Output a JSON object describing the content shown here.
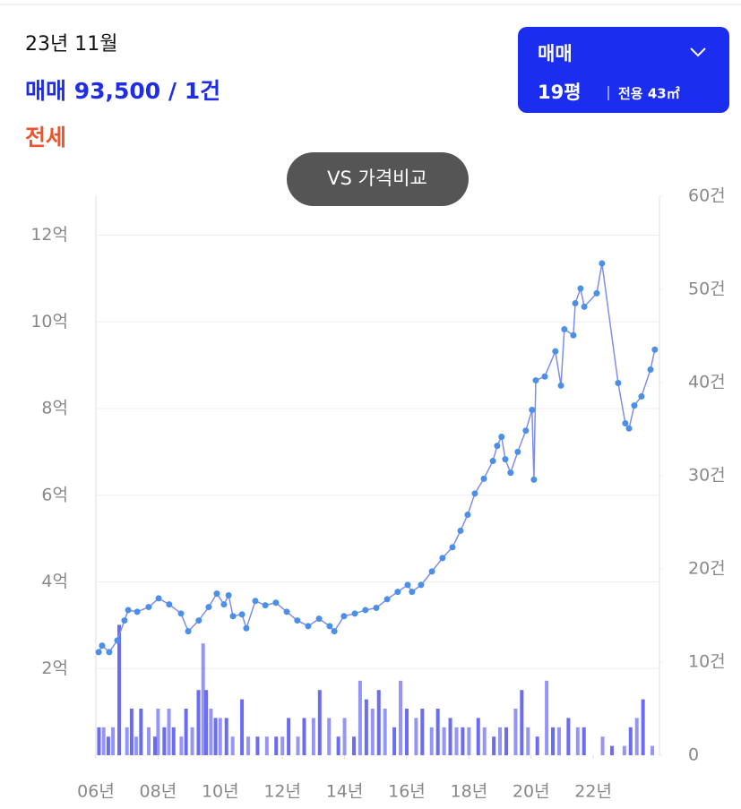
{
  "header": {
    "period": "23년 11월",
    "deal_line": "매매 93,500 / 1건",
    "jeonse": "전세"
  },
  "selector": {
    "type": "매매",
    "size": "19평",
    "area": "전용 43㎡"
  },
  "compare_button": "VS 가격비교",
  "chart_data": [
    {
      "type": "line",
      "color": "#4a90e8",
      "x": [
        2006.09,
        2006.2,
        2006.43,
        2006.69,
        2006.92,
        2007.04,
        2007.33,
        2007.7,
        2008.02,
        2008.36,
        2008.74,
        2008.97,
        2009.31,
        2009.63,
        2009.89,
        2010.12,
        2010.27,
        2010.41,
        2010.7,
        2010.84,
        2011.13,
        2011.45,
        2011.79,
        2012.14,
        2012.48,
        2012.83,
        2013.18,
        2013.52,
        2013.67,
        2013.98,
        2014.33,
        2014.67,
        2015.02,
        2015.37,
        2015.71,
        2016.03,
        2016.17,
        2016.46,
        2016.81,
        2017.15,
        2017.47,
        2017.73,
        2017.96,
        2018.19,
        2018.48,
        2018.77,
        2018.91,
        2019.05,
        2019.17,
        2019.34,
        2019.57,
        2019.83,
        2020.03,
        2020.09,
        2020.15,
        2020.44,
        2020.78,
        2020.96,
        2021.07,
        2021.36,
        2021.42,
        2021.59,
        2021.71,
        2022.11,
        2022.28,
        2022.8,
        2023.03,
        2023.15,
        2023.32,
        2023.55,
        2023.84,
        2023.98
      ],
      "values": [
        2.38,
        2.53,
        2.38,
        2.65,
        3.11,
        3.35,
        3.31,
        3.42,
        3.62,
        3.48,
        3.27,
        2.86,
        3.11,
        3.42,
        3.73,
        3.48,
        3.69,
        3.21,
        3.25,
        2.93,
        3.56,
        3.46,
        3.52,
        3.31,
        3.11,
        2.98,
        3.15,
        2.98,
        2.86,
        3.21,
        3.27,
        3.35,
        3.4,
        3.6,
        3.77,
        3.93,
        3.77,
        3.93,
        4.24,
        4.55,
        4.8,
        5.18,
        5.55,
        6.04,
        6.38,
        6.79,
        7.14,
        7.35,
        6.83,
        6.52,
        7.0,
        7.49,
        7.97,
        6.36,
        8.65,
        8.74,
        9.32,
        8.53,
        9.83,
        9.69,
        10.43,
        10.77,
        10.35,
        10.66,
        11.35,
        8.59,
        7.66,
        7.54,
        8.07,
        8.28,
        8.9,
        9.36
      ],
      "xlim": [
        2006,
        2024.1
      ],
      "xticks": [
        {
          "value": 2006,
          "label": "06년"
        },
        {
          "value": 2008,
          "label": "08년"
        },
        {
          "value": 2010,
          "label": "10년"
        },
        {
          "value": 2012,
          "label": "12년"
        },
        {
          "value": 2014,
          "label": "14년"
        },
        {
          "value": 2016,
          "label": "16년"
        },
        {
          "value": 2018,
          "label": "18년"
        },
        {
          "value": 2020,
          "label": "20년"
        },
        {
          "value": 2022,
          "label": "22년"
        }
      ],
      "ylim": [
        0,
        12.9
      ],
      "yticks": [
        {
          "value": 2,
          "label": "2억"
        },
        {
          "value": 4,
          "label": "4억"
        },
        {
          "value": 6,
          "label": "6억"
        },
        {
          "value": 8,
          "label": "8억"
        },
        {
          "value": 10,
          "label": "10억"
        },
        {
          "value": 12,
          "label": "12억"
        }
      ],
      "grid": true
    },
    {
      "type": "bar",
      "color": "#5a5cf2",
      "x": [
        2006.1,
        2006.25,
        2006.4,
        2006.55,
        2006.75,
        2007.0,
        2007.15,
        2007.3,
        2007.45,
        2007.7,
        2007.9,
        2008.0,
        2008.2,
        2008.35,
        2008.5,
        2008.75,
        2008.9,
        2009.1,
        2009.3,
        2009.45,
        2009.55,
        2009.7,
        2009.85,
        2010.0,
        2010.2,
        2010.4,
        2010.7,
        2010.9,
        2011.2,
        2011.5,
        2011.8,
        2012.0,
        2012.2,
        2012.5,
        2012.7,
        2013.0,
        2013.2,
        2013.5,
        2013.8,
        2014.0,
        2014.3,
        2014.5,
        2014.7,
        2014.9,
        2015.1,
        2015.3,
        2015.6,
        2015.8,
        2016.0,
        2016.3,
        2016.5,
        2016.8,
        2017.0,
        2017.2,
        2017.4,
        2017.6,
        2017.8,
        2018.0,
        2018.3,
        2018.5,
        2018.8,
        2019.0,
        2019.2,
        2019.5,
        2019.7,
        2019.9,
        2020.2,
        2020.5,
        2020.7,
        2020.9,
        2021.2,
        2021.5,
        2021.7,
        2022.3,
        2022.6,
        2023.0,
        2023.2,
        2023.4,
        2023.6,
        2023.9
      ],
      "values": [
        3,
        3,
        2,
        3,
        14,
        3,
        5,
        2,
        5,
        3,
        2,
        5,
        3,
        5,
        3,
        2,
        5,
        3,
        7,
        12,
        7,
        5,
        4,
        4,
        4,
        2,
        6,
        2,
        2,
        2,
        2,
        2,
        4,
        2,
        4,
        4,
        7,
        4,
        2,
        4,
        2,
        8,
        6,
        5,
        7,
        5,
        3,
        8,
        5,
        4,
        5,
        3,
        5,
        3,
        4,
        3,
        3,
        3,
        4,
        3,
        2,
        3,
        3,
        5,
        7,
        3,
        2,
        8,
        3,
        3,
        4,
        3,
        3,
        2,
        1,
        1,
        3,
        4,
        6,
        1
      ],
      "ylim": [
        0,
        60
      ],
      "yticks": [
        0,
        {
          "value": 10,
          "label": "10건"
        },
        {
          "value": 20,
          "label": "20건"
        },
        {
          "value": 30,
          "label": "30건"
        },
        {
          "value": 40,
          "label": "40건"
        },
        {
          "value": 50,
          "label": "50건"
        },
        {
          "value": 60,
          "label": "60건"
        }
      ]
    }
  ]
}
